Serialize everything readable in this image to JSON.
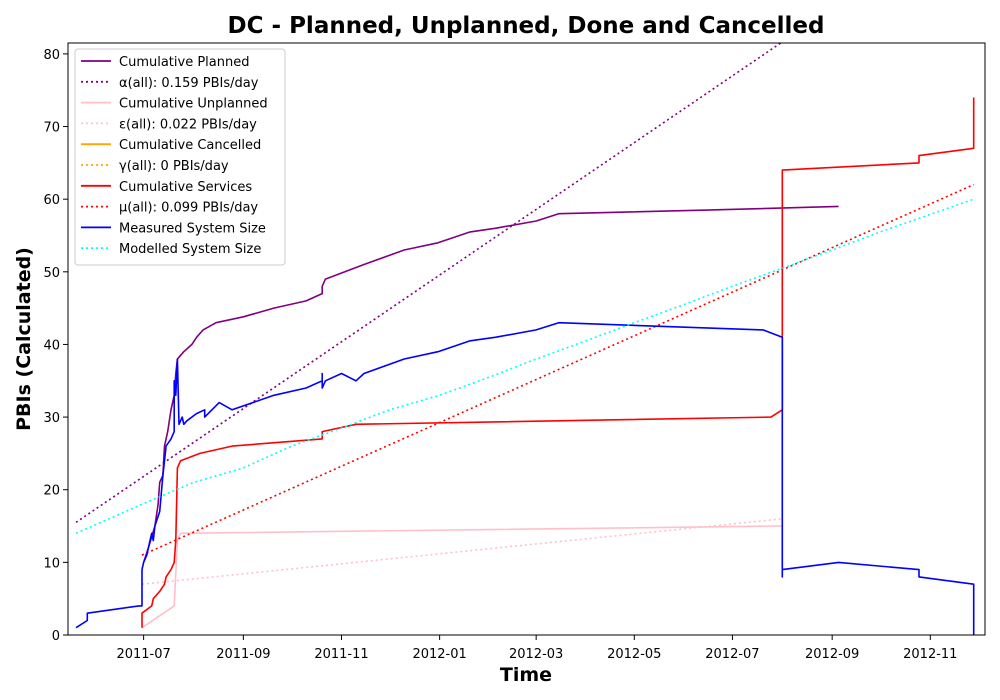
{
  "chart_data": {
    "type": "line",
    "title": "DC - Planned, Unplanned, Done  and Cancelled",
    "xlabel": "Time",
    "ylabel": "PBIs (Calculated)",
    "xlim": [
      "2011-05-15",
      "2012-12-05"
    ],
    "ylim": [
      0,
      81.5
    ],
    "x_ticks": [
      "2011-07",
      "2011-09",
      "2011-11",
      "2012-01",
      "2012-03",
      "2012-05",
      "2012-07",
      "2012-09",
      "2012-11"
    ],
    "y_ticks": [
      0,
      10,
      20,
      30,
      40,
      50,
      60,
      70,
      80
    ],
    "grid": false,
    "legend_position": "top-left",
    "series": [
      {
        "name": "Cumulative Planned",
        "color": "#800080",
        "style": "solid",
        "points": [
          [
            "2011-07-01",
            10
          ],
          [
            "2011-07-04",
            12
          ],
          [
            "2011-07-08",
            15
          ],
          [
            "2011-07-10",
            18
          ],
          [
            "2011-07-11",
            21
          ],
          [
            "2011-07-13",
            22
          ],
          [
            "2011-07-14",
            26
          ],
          [
            "2011-07-16",
            28
          ],
          [
            "2011-07-18",
            31
          ],
          [
            "2011-07-20",
            33
          ],
          [
            "2011-07-21",
            36
          ],
          [
            "2011-07-22",
            38
          ],
          [
            "2011-07-26",
            39
          ],
          [
            "2011-07-31",
            40
          ],
          [
            "2011-08-03",
            41
          ],
          [
            "2011-08-07",
            42
          ],
          [
            "2011-08-15",
            43
          ],
          [
            "2011-09-01",
            43.8
          ],
          [
            "2011-09-20",
            45
          ],
          [
            "2011-10-10",
            46
          ],
          [
            "2011-10-20",
            47
          ],
          [
            "2011-10-20",
            48
          ],
          [
            "2011-10-22",
            49
          ],
          [
            "2011-11-15",
            51
          ],
          [
            "2011-12-10",
            53
          ],
          [
            "2011-12-31",
            54
          ],
          [
            "2012-01-20",
            55.5
          ],
          [
            "2012-02-05",
            56
          ],
          [
            "2012-03-01",
            57
          ],
          [
            "2012-03-15",
            58
          ],
          [
            "2012-06-15",
            58.5
          ],
          [
            "2012-09-05",
            59
          ]
        ]
      },
      {
        "name": "α(all): 0.159 PBIs/day",
        "color": "#800080",
        "style": "dotted",
        "points": [
          [
            "2011-05-20",
            15.5
          ],
          [
            "2012-07-31",
            81.5
          ]
        ]
      },
      {
        "name": "Cumulative Unplanned",
        "color": "#ffc0cb",
        "style": "solid",
        "points": [
          [
            "2011-06-30",
            1
          ],
          [
            "2011-07-20",
            4
          ],
          [
            "2011-07-22",
            13
          ],
          [
            "2011-07-24",
            14
          ],
          [
            "2012-08-01",
            15
          ]
        ]
      },
      {
        "name": "ε(all): 0.022 PBIs/day",
        "color": "#ffc0cb",
        "style": "dotted",
        "points": [
          [
            "2011-06-30",
            7
          ],
          [
            "2012-08-01",
            16
          ]
        ]
      },
      {
        "name": "Cumulative Cancelled",
        "color": "#ffa500",
        "style": "solid",
        "points": []
      },
      {
        "name": "γ(all): 0 PBIs/day",
        "color": "#ffa500",
        "style": "dotted",
        "points": []
      },
      {
        "name": "Cumulative Services",
        "color": "#ff0000",
        "style": "solid",
        "points": [
          [
            "2011-06-30",
            1
          ],
          [
            "2011-06-30",
            3
          ],
          [
            "2011-07-06",
            4
          ],
          [
            "2011-07-07",
            5
          ],
          [
            "2011-07-11",
            6
          ],
          [
            "2011-07-14",
            7
          ],
          [
            "2011-07-15",
            8
          ],
          [
            "2011-07-18",
            9
          ],
          [
            "2011-07-20",
            10
          ],
          [
            "2011-07-21",
            13
          ],
          [
            "2011-07-22",
            23
          ],
          [
            "2011-07-24",
            24
          ],
          [
            "2011-08-05",
            25
          ],
          [
            "2011-08-25",
            26
          ],
          [
            "2011-10-20",
            27
          ],
          [
            "2011-10-20",
            28
          ],
          [
            "2011-11-10",
            29
          ],
          [
            "2012-07-25",
            30
          ],
          [
            "2012-08-01",
            31
          ],
          [
            "2012-08-01",
            64
          ],
          [
            "2012-10-25",
            65
          ],
          [
            "2012-10-25",
            66
          ],
          [
            "2012-11-28",
            67
          ],
          [
            "2012-11-28",
            74
          ]
        ]
      },
      {
        "name": "μ(all): 0.099 PBIs/day",
        "color": "#ff0000",
        "style": "dotted",
        "points": [
          [
            "2011-06-30",
            11
          ],
          [
            "2012-11-28",
            62
          ]
        ]
      },
      {
        "name": "Measured System Size",
        "color": "#0000ff",
        "style": "solid",
        "points": [
          [
            "2011-05-20",
            1
          ],
          [
            "2011-05-27",
            2
          ],
          [
            "2011-05-27",
            3
          ],
          [
            "2011-06-28",
            4
          ],
          [
            "2011-06-30",
            4
          ],
          [
            "2011-06-30",
            9
          ],
          [
            "2011-07-01",
            10
          ],
          [
            "2011-07-03",
            11
          ],
          [
            "2011-07-05",
            13
          ],
          [
            "2011-07-06",
            14
          ],
          [
            "2011-07-07",
            13
          ],
          [
            "2011-07-08",
            15
          ],
          [
            "2011-07-11",
            17
          ],
          [
            "2011-07-13",
            22
          ],
          [
            "2011-07-15",
            26
          ],
          [
            "2011-07-18",
            27
          ],
          [
            "2011-07-20",
            28
          ],
          [
            "2011-07-20",
            35
          ],
          [
            "2011-07-21",
            33
          ],
          [
            "2011-07-22",
            38
          ],
          [
            "2011-07-23",
            29
          ],
          [
            "2011-07-25",
            30
          ],
          [
            "2011-07-26",
            29
          ],
          [
            "2011-07-28",
            29.5
          ],
          [
            "2011-08-03",
            30.5
          ],
          [
            "2011-08-08",
            31
          ],
          [
            "2011-08-08",
            30
          ],
          [
            "2011-08-17",
            32
          ],
          [
            "2011-08-25",
            31
          ],
          [
            "2011-09-20",
            33
          ],
          [
            "2011-10-10",
            34
          ],
          [
            "2011-10-20",
            35
          ],
          [
            "2011-10-20",
            36
          ],
          [
            "2011-10-20",
            34
          ],
          [
            "2011-10-22",
            35
          ],
          [
            "2011-11-01",
            36
          ],
          [
            "2011-11-10",
            35
          ],
          [
            "2011-11-15",
            36
          ],
          [
            "2011-12-10",
            38
          ],
          [
            "2011-12-31",
            39
          ],
          [
            "2012-01-20",
            40.5
          ],
          [
            "2012-02-05",
            41
          ],
          [
            "2012-03-01",
            42
          ],
          [
            "2012-03-15",
            43
          ],
          [
            "2012-07-20",
            42
          ],
          [
            "2012-08-01",
            41
          ],
          [
            "2012-08-01",
            8
          ],
          [
            "2012-08-01",
            9
          ],
          [
            "2012-09-05",
            10
          ],
          [
            "2012-10-25",
            9
          ],
          [
            "2012-10-25",
            8
          ],
          [
            "2012-11-28",
            7
          ],
          [
            "2012-11-28",
            0
          ]
        ]
      },
      {
        "name": "Modelled System Size",
        "color": "#00ffff",
        "style": "dotted",
        "points": [
          [
            "2011-05-20",
            14
          ],
          [
            "2011-06-30",
            18
          ],
          [
            "2011-08-01",
            21
          ],
          [
            "2011-09-01",
            23
          ],
          [
            "2011-10-01",
            26
          ],
          [
            "2011-11-01",
            28.5
          ],
          [
            "2011-12-01",
            31
          ],
          [
            "2012-01-01",
            33
          ],
          [
            "2012-02-01",
            35.5
          ],
          [
            "2012-03-01",
            38
          ],
          [
            "2012-04-01",
            40.5
          ],
          [
            "2012-05-01",
            43
          ],
          [
            "2012-06-01",
            45.5
          ],
          [
            "2012-07-01",
            48
          ],
          [
            "2012-08-01",
            50.5
          ],
          [
            "2012-09-01",
            53
          ],
          [
            "2012-10-01",
            55.5
          ],
          [
            "2012-11-28",
            60
          ]
        ]
      }
    ]
  }
}
